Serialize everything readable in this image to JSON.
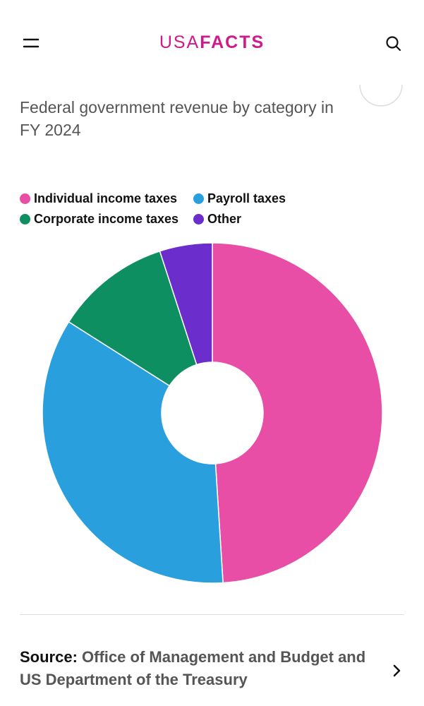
{
  "header": {
    "logo_light": "USA",
    "logo_bold": "FACTS"
  },
  "chart_data": {
    "type": "pie",
    "title": "Federal government revenue by category in FY 2024",
    "categories": [
      "Individual income taxes",
      "Payroll taxes",
      "Corporate income taxes",
      "Other"
    ],
    "values": [
      49,
      35,
      11,
      5
    ],
    "colors": [
      "#e84ea5",
      "#29a0dd",
      "#0e8f62",
      "#6b2dcc"
    ],
    "donut": true
  },
  "source": {
    "label": "Source:",
    "text": "Office of Management and Budget and US Department of the Treasury"
  }
}
